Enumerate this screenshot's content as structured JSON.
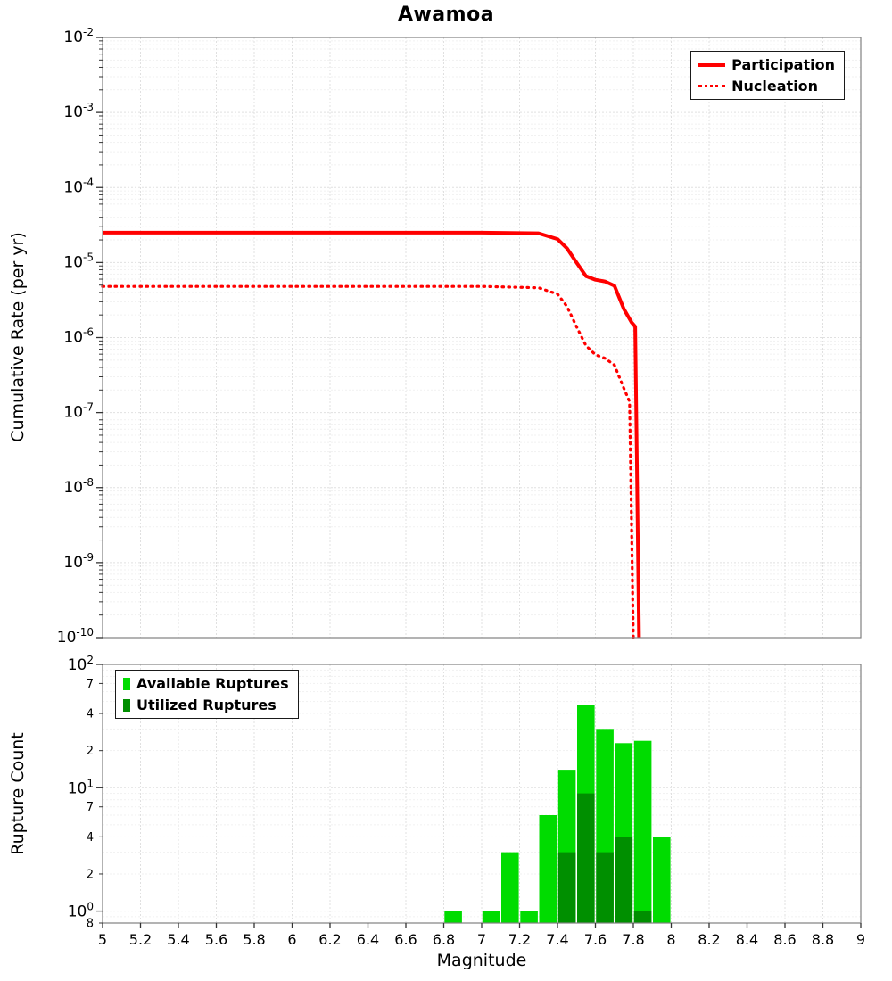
{
  "title": "Awamoa",
  "colors": {
    "line_red": "#ff0000",
    "available_green": "#00dc00",
    "utilized_green": "#008f00",
    "grid_major": "#e0e0e0",
    "grid_minor": "#f1f1f1",
    "panel_border": "#808080",
    "tick": "#333333"
  },
  "chart_data": [
    {
      "type": "line",
      "title": "Awamoa",
      "xlabel": "",
      "ylabel": "Cumulative Rate (per yr)",
      "xlim": [
        5,
        9
      ],
      "ylim": [
        1e-10,
        0.01
      ],
      "y_scale": "log",
      "grid": true,
      "legend_position": "top-right",
      "y_tick_exponents": [
        -2,
        -3,
        -4,
        -5,
        -6,
        -7,
        -8,
        -9,
        -10
      ],
      "series": [
        {
          "name": "Participation",
          "style": "solid",
          "color": "#ff0000",
          "points": [
            [
              5.0,
              2.5e-05
            ],
            [
              6.0,
              2.5e-05
            ],
            [
              7.0,
              2.5e-05
            ],
            [
              7.3,
              2.45e-05
            ],
            [
              7.4,
              2.05e-05
            ],
            [
              7.45,
              1.55e-05
            ],
            [
              7.5,
              1e-05
            ],
            [
              7.55,
              6.6e-06
            ],
            [
              7.6,
              5.9e-06
            ],
            [
              7.65,
              5.6e-06
            ],
            [
              7.7,
              4.9e-06
            ],
            [
              7.75,
              2.4e-06
            ],
            [
              7.79,
              1.6e-06
            ],
            [
              7.81,
              1.4e-06
            ],
            [
              7.83,
              1e-10
            ]
          ]
        },
        {
          "name": "Nucleation",
          "style": "dotted",
          "color": "#ff0000",
          "points": [
            [
              5.0,
              4.8e-06
            ],
            [
              6.0,
              4.8e-06
            ],
            [
              7.0,
              4.8e-06
            ],
            [
              7.3,
              4.6e-06
            ],
            [
              7.4,
              3.8e-06
            ],
            [
              7.45,
              2.6e-06
            ],
            [
              7.5,
              1.4e-06
            ],
            [
              7.55,
              7.8e-07
            ],
            [
              7.6,
              5.9e-07
            ],
            [
              7.65,
              5.3e-07
            ],
            [
              7.7,
              4.3e-07
            ],
            [
              7.75,
              2.1e-07
            ],
            [
              7.78,
              1.4e-07
            ],
            [
              7.8,
              1e-10
            ]
          ]
        }
      ]
    },
    {
      "type": "bar",
      "xlabel": "Magnitude",
      "ylabel": "Rupture Count",
      "xlim": [
        5,
        9
      ],
      "ylim": [
        0.8,
        100
      ],
      "y_scale": "log",
      "bin_width": 0.1,
      "grid": true,
      "legend_position": "top-left",
      "x_ticks": [
        "5",
        "5.2",
        "5.4",
        "5.6",
        "5.8",
        "6",
        "6.2",
        "6.4",
        "6.6",
        "6.8",
        "7",
        "7.2",
        "7.4",
        "7.6",
        "7.8",
        "8",
        "8.2",
        "8.4",
        "8.6",
        "8.8",
        "9"
      ],
      "y_ticks": [
        {
          "v": 100,
          "label": "10",
          "exp": "2"
        },
        {
          "v": 70,
          "label": "7"
        },
        {
          "v": 40,
          "label": "4"
        },
        {
          "v": 20,
          "label": "2"
        },
        {
          "v": 10,
          "label": "10",
          "exp": "1"
        },
        {
          "v": 7,
          "label": "7"
        },
        {
          "v": 4,
          "label": "4"
        },
        {
          "v": 2,
          "label": "2"
        },
        {
          "v": 1,
          "label": "10",
          "exp": "0"
        },
        {
          "v": 0.8,
          "label": "8"
        }
      ],
      "series": [
        {
          "name": "Available Ruptures",
          "color": "#00dc00",
          "bins": [
            [
              6.85,
              1
            ],
            [
              7.05,
              1
            ],
            [
              7.15,
              3
            ],
            [
              7.25,
              1
            ],
            [
              7.35,
              6
            ],
            [
              7.45,
              14
            ],
            [
              7.55,
              47
            ],
            [
              7.65,
              30
            ],
            [
              7.75,
              23
            ],
            [
              7.85,
              24
            ],
            [
              7.95,
              4
            ]
          ]
        },
        {
          "name": "Utilized Ruptures",
          "color": "#008f00",
          "bins": [
            [
              7.45,
              3
            ],
            [
              7.55,
              9
            ],
            [
              7.65,
              3
            ],
            [
              7.75,
              4
            ],
            [
              7.85,
              1
            ]
          ]
        }
      ]
    }
  ]
}
